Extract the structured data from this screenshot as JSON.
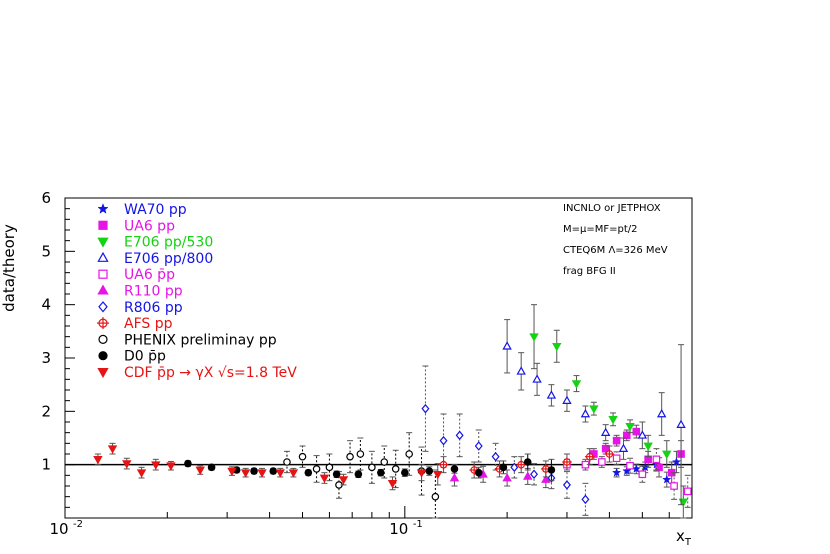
{
  "chart_data": {
    "type": "scatter",
    "title": "",
    "xlabel": "x_T",
    "ylabel": "data/theory",
    "x_scale": "log",
    "xlim": [
      0.01,
      0.7
    ],
    "ylim": [
      0,
      6
    ],
    "x_ticks": [
      {
        "value": 0.01,
        "base": "10",
        "exp": "-2"
      },
      {
        "value": 0.1,
        "base": "10",
        "exp": "-1"
      }
    ],
    "y_ticks": [
      {
        "value": 1,
        "label": "1"
      },
      {
        "value": 2,
        "label": "2"
      },
      {
        "value": 3,
        "label": "3"
      },
      {
        "value": 4,
        "label": "4"
      },
      {
        "value": 5,
        "label": "5"
      },
      {
        "value": 6,
        "label": "6"
      }
    ],
    "reference_line": 1,
    "grid": false,
    "legend_position": "top-left",
    "annotations": [
      "INCNLO or JETPHOX",
      "M=μ=MF=pt/2",
      "CTEQ6M Λ=326 MeV",
      "frag  BFG II"
    ],
    "series": [
      {
        "name": "WA70 pp",
        "color": "#1414e6",
        "marker": "star",
        "filled": true,
        "points": [
          [
            0.42,
            0.85,
            0.08
          ],
          [
            0.45,
            0.88,
            0.08
          ],
          [
            0.48,
            0.92,
            0.09
          ],
          [
            0.51,
            0.95,
            0.1
          ],
          [
            0.55,
            1.0,
            0.12
          ],
          [
            0.59,
            0.72,
            0.14
          ],
          [
            0.63,
            1.05,
            0.2
          ]
        ]
      },
      {
        "name": "UA6 pp",
        "color": "#e614e6",
        "marker": "square",
        "filled": true,
        "points": [
          [
            0.36,
            1.2,
            0.1
          ],
          [
            0.39,
            1.3,
            0.1
          ],
          [
            0.42,
            1.45,
            0.1
          ],
          [
            0.45,
            1.55,
            0.1
          ],
          [
            0.48,
            1.62,
            0.12
          ],
          [
            0.52,
            1.1,
            0.15
          ],
          [
            0.56,
            0.95,
            0.18
          ],
          [
            0.61,
            0.85,
            0.2
          ],
          [
            0.65,
            1.2,
            0.25
          ]
        ]
      },
      {
        "name": "E706 pp/530",
        "color": "#14d214",
        "marker": "tri-down",
        "filled": true,
        "points": [
          [
            0.24,
            3.4,
            0.6
          ],
          [
            0.28,
            3.22,
            0.3
          ],
          [
            0.32,
            2.52,
            0.15
          ],
          [
            0.36,
            2.05,
            0.12
          ],
          [
            0.41,
            1.85,
            0.12
          ],
          [
            0.46,
            1.72,
            0.12
          ],
          [
            0.52,
            1.35,
            0.2
          ],
          [
            0.59,
            1.2,
            0.25
          ],
          [
            0.66,
            0.3,
            0.3
          ]
        ]
      },
      {
        "name": "E706 pp/800",
        "color": "#1414e6",
        "marker": "tri-up",
        "filled": false,
        "points": [
          [
            0.2,
            3.22,
            0.5
          ],
          [
            0.22,
            2.75,
            0.35
          ],
          [
            0.245,
            2.6,
            0.3
          ],
          [
            0.27,
            2.3,
            0.2
          ],
          [
            0.3,
            2.2,
            0.2
          ],
          [
            0.34,
            1.95,
            0.15
          ],
          [
            0.39,
            1.6,
            0.15
          ],
          [
            0.44,
            1.3,
            0.2
          ],
          [
            0.5,
            1.55,
            0.25
          ],
          [
            0.57,
            1.95,
            0.4
          ],
          [
            0.65,
            1.75,
            1.5
          ]
        ]
      },
      {
        "name": "UA6 p̄p",
        "color": "#e614e6",
        "marker": "square",
        "filled": false,
        "points": [
          [
            0.3,
            1.0,
            0.1
          ],
          [
            0.34,
            1.0,
            0.1
          ],
          [
            0.38,
            1.05,
            0.1
          ],
          [
            0.42,
            1.12,
            0.12
          ],
          [
            0.46,
            0.98,
            0.14
          ],
          [
            0.5,
            0.82,
            0.15
          ],
          [
            0.55,
            1.1,
            0.2
          ],
          [
            0.62,
            0.6,
            0.25
          ],
          [
            0.68,
            0.5,
            0.3
          ]
        ]
      },
      {
        "name": "R110 pp",
        "color": "#e614e6",
        "marker": "tri-up",
        "filled": true,
        "points": [
          [
            0.14,
            0.75,
            0.15
          ],
          [
            0.17,
            0.82,
            0.15
          ],
          [
            0.2,
            0.75,
            0.15
          ],
          [
            0.23,
            0.78,
            0.15
          ],
          [
            0.26,
            0.72,
            0.15
          ]
        ]
      },
      {
        "name": "R806 pp",
        "color": "#1414e6",
        "marker": "diamond",
        "filled": false,
        "points": [
          [
            0.115,
            2.05,
            0.8
          ],
          [
            0.13,
            1.45,
            0.5
          ],
          [
            0.145,
            1.55,
            0.4
          ],
          [
            0.165,
            1.35,
            0.3
          ],
          [
            0.185,
            1.15,
            0.25
          ],
          [
            0.21,
            0.95,
            0.2
          ],
          [
            0.24,
            0.82,
            0.2
          ],
          [
            0.27,
            0.75,
            0.2
          ],
          [
            0.3,
            0.62,
            0.25
          ],
          [
            0.34,
            0.35,
            0.3
          ]
        ]
      },
      {
        "name": "AFS pp",
        "color": "#e61414",
        "marker": "cross",
        "filled": false,
        "points": [
          [
            0.13,
            1.0,
            0.15
          ],
          [
            0.16,
            0.9,
            0.15
          ],
          [
            0.19,
            0.92,
            0.15
          ],
          [
            0.22,
            1.0,
            0.15
          ],
          [
            0.26,
            0.92,
            0.15
          ],
          [
            0.3,
            1.05,
            0.15
          ],
          [
            0.35,
            1.15,
            0.15
          ],
          [
            0.4,
            1.2,
            0.15
          ]
        ]
      },
      {
        "name": "PHENIX preliminay pp",
        "color": "#000000",
        "marker": "circle",
        "filled": false,
        "points": [
          [
            0.045,
            1.05,
            0.2
          ],
          [
            0.05,
            1.15,
            0.2
          ],
          [
            0.055,
            0.92,
            0.25
          ],
          [
            0.06,
            0.95,
            0.25
          ],
          [
            0.064,
            0.62,
            0.25
          ],
          [
            0.069,
            1.15,
            0.3
          ],
          [
            0.074,
            1.2,
            0.3
          ],
          [
            0.08,
            0.95,
            0.3
          ],
          [
            0.087,
            1.05,
            0.3
          ],
          [
            0.094,
            0.92,
            0.35
          ],
          [
            0.103,
            1.2,
            0.4
          ],
          [
            0.112,
            0.88,
            0.45
          ],
          [
            0.123,
            0.4,
            0.5
          ]
        ]
      },
      {
        "name": "D0 p̄p",
        "color": "#000000",
        "marker": "circle",
        "filled": true,
        "points": [
          [
            0.023,
            1.02,
            0.05
          ],
          [
            0.027,
            0.95,
            0.05
          ],
          [
            0.032,
            0.9,
            0.05
          ],
          [
            0.036,
            0.88,
            0.05
          ],
          [
            0.041,
            0.88,
            0.05
          ],
          [
            0.052,
            0.85,
            0.05
          ],
          [
            0.063,
            0.82,
            0.06
          ],
          [
            0.073,
            0.82,
            0.06
          ],
          [
            0.085,
            0.85,
            0.06
          ],
          [
            0.1,
            0.85,
            0.07
          ],
          [
            0.118,
            0.88,
            0.08
          ],
          [
            0.14,
            0.92,
            0.08
          ],
          [
            0.165,
            0.85,
            0.1
          ],
          [
            0.195,
            0.95,
            0.12
          ],
          [
            0.23,
            1.05,
            0.15
          ],
          [
            0.27,
            0.9,
            0.2
          ]
        ]
      },
      {
        "name": "CDF p̄p → γX √s=1.8 TeV",
        "color": "#e61414",
        "marker": "tri-down",
        "filled": true,
        "points": [
          [
            0.0125,
            1.1,
            0.1
          ],
          [
            0.0138,
            1.3,
            0.1
          ],
          [
            0.0152,
            1.02,
            0.1
          ],
          [
            0.0168,
            0.85,
            0.1
          ],
          [
            0.0185,
            1.0,
            0.1
          ],
          [
            0.0205,
            0.98,
            0.08
          ],
          [
            0.025,
            0.9,
            0.08
          ],
          [
            0.031,
            0.88,
            0.08
          ],
          [
            0.034,
            0.85,
            0.08
          ],
          [
            0.038,
            0.85,
            0.08
          ],
          [
            0.043,
            0.85,
            0.08
          ],
          [
            0.047,
            0.85,
            0.08
          ],
          [
            0.058,
            0.75,
            0.1
          ],
          [
            0.066,
            0.72,
            0.1
          ],
          [
            0.092,
            0.65,
            0.12
          ],
          [
            0.112,
            0.85,
            0.15
          ],
          [
            0.125,
            0.82,
            0.2
          ]
        ]
      }
    ]
  }
}
